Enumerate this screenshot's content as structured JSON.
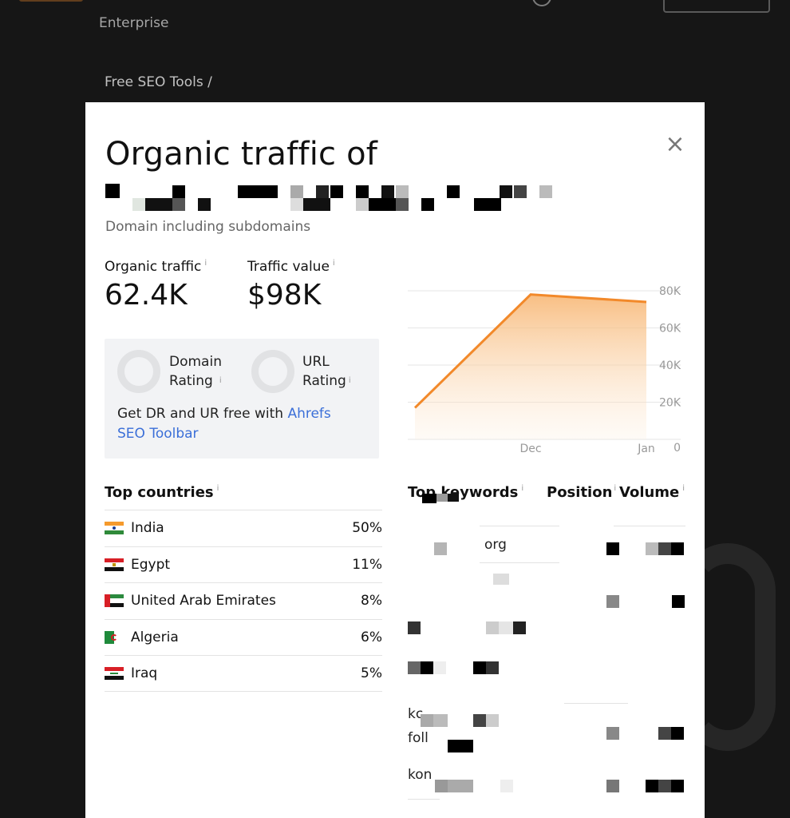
{
  "background": {
    "nav_item": "Enterprise",
    "breadcrumb": "Free SEO Tools /"
  },
  "modal": {
    "title": "Organic traffic of",
    "subtitle": "Domain including subdomains",
    "close_icon": "close-icon",
    "metrics": {
      "organic_traffic_label": "Organic traffic",
      "organic_traffic_value": "62.4K",
      "traffic_value_label": "Traffic value",
      "traffic_value_value": "$98K",
      "info_glyph": "i"
    },
    "ratings": {
      "domain_rating_line1": "Domain",
      "domain_rating_line2": "Rating",
      "url_rating_line1": "URL",
      "url_rating_line2": "Rating",
      "promo_text": "Get DR and UR free with ",
      "promo_link": "Ahrefs SEO Toolbar"
    },
    "top_countries": {
      "title": "Top countries",
      "rows": [
        {
          "name": "India",
          "pct": "50%"
        },
        {
          "name": "Egypt",
          "pct": "11%"
        },
        {
          "name": "United Arab Emirates",
          "pct": "8%"
        },
        {
          "name": "Algeria",
          "pct": "6%"
        },
        {
          "name": "Iraq",
          "pct": "5%"
        }
      ]
    },
    "top_keywords": {
      "title": "Top keywords",
      "position_header": "Position",
      "volume_header": "Volume",
      "partial_texts": [
        "org",
        "kc",
        "foll",
        "kon"
      ]
    }
  },
  "chart_data": {
    "type": "area",
    "x": [
      "",
      "Dec",
      "Jan"
    ],
    "values": [
      17000,
      78000,
      74000
    ],
    "y_tick_labels": [
      "80K",
      "60K",
      "40K",
      "20K",
      "0"
    ],
    "x_tick_labels": [
      "Dec",
      "Jan"
    ],
    "ylim": [
      0,
      80000
    ],
    "grid": true,
    "color": "#f2892a"
  }
}
